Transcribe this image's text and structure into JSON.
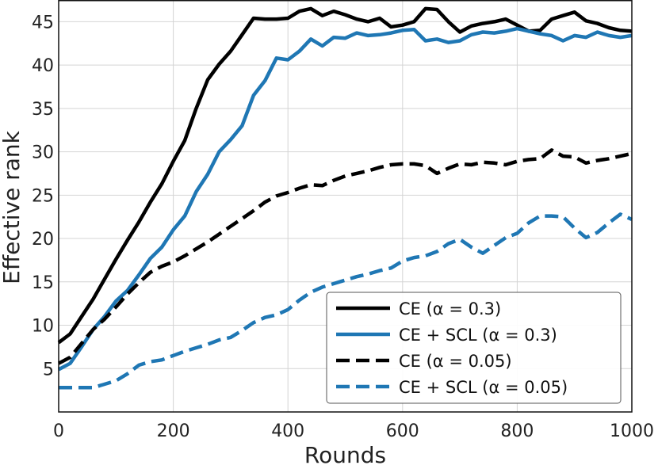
{
  "chart_data": {
    "type": "line",
    "xlabel": "Rounds",
    "ylabel": "Effective rank",
    "xlim": [
      0,
      1000
    ],
    "ylim": [
      0,
      47.5
    ],
    "xticks": [
      0,
      200,
      400,
      600,
      800,
      1000
    ],
    "yticks": [
      5,
      10,
      15,
      20,
      25,
      30,
      35,
      40,
      45
    ],
    "grid": true,
    "legend_position": "lower-right",
    "x": [
      0,
      20,
      40,
      60,
      80,
      100,
      120,
      140,
      160,
      180,
      200,
      220,
      240,
      260,
      280,
      300,
      320,
      340,
      360,
      380,
      400,
      420,
      440,
      460,
      480,
      500,
      520,
      540,
      560,
      580,
      600,
      620,
      640,
      660,
      680,
      700,
      720,
      740,
      760,
      780,
      800,
      820,
      840,
      860,
      880,
      900,
      920,
      940,
      960,
      980,
      1000
    ],
    "series": [
      {
        "name": "CE (α = 0.3)",
        "color": "#000000",
        "dash": "solid",
        "values": [
          8.0,
          9.0,
          11.0,
          13.0,
          15.3,
          17.6,
          19.8,
          21.9,
          24.2,
          26.3,
          28.9,
          31.3,
          35.0,
          38.3,
          40.1,
          41.6,
          43.5,
          45.4,
          45.3,
          45.3,
          45.4,
          46.2,
          46.5,
          45.7,
          46.2,
          45.8,
          45.3,
          45.0,
          45.4,
          44.4,
          44.6,
          45.0,
          46.5,
          46.4,
          45.0,
          43.8,
          44.5,
          44.8,
          45.0,
          45.3,
          44.6,
          43.9,
          44.0,
          45.3,
          45.7,
          46.1,
          45.1,
          44.8,
          44.3,
          44.0,
          43.9
        ]
      },
      {
        "name": "CE + SCL (α = 0.3)",
        "color": "#1f77b4",
        "dash": "solid",
        "values": [
          4.9,
          5.6,
          7.5,
          9.5,
          11.0,
          12.8,
          14.0,
          15.8,
          17.7,
          19.0,
          21.0,
          22.6,
          25.4,
          27.4,
          30.0,
          31.4,
          33.0,
          36.5,
          38.2,
          40.8,
          40.6,
          41.6,
          43.0,
          42.2,
          43.2,
          43.1,
          43.7,
          43.4,
          43.5,
          43.7,
          44.0,
          44.1,
          42.8,
          43.0,
          42.6,
          42.8,
          43.5,
          43.8,
          43.7,
          43.9,
          44.2,
          43.9,
          43.6,
          43.4,
          42.8,
          43.4,
          43.2,
          43.8,
          43.4,
          43.2,
          43.4
        ]
      },
      {
        "name": "CE (α = 0.05)",
        "color": "#000000",
        "dash": "dashed",
        "values": [
          5.6,
          6.3,
          7.9,
          9.5,
          10.7,
          12.1,
          13.6,
          14.9,
          16.1,
          16.8,
          17.3,
          18.0,
          18.8,
          19.6,
          20.5,
          21.4,
          22.3,
          23.2,
          24.2,
          24.9,
          25.3,
          25.8,
          26.2,
          26.1,
          26.7,
          27.2,
          27.5,
          27.8,
          28.2,
          28.5,
          28.6,
          28.6,
          28.4,
          27.5,
          28.1,
          28.6,
          28.5,
          28.8,
          28.7,
          28.5,
          28.9,
          29.1,
          29.2,
          30.2,
          29.5,
          29.4,
          28.7,
          29.0,
          29.2,
          29.5,
          29.8
        ]
      },
      {
        "name": "CE + SCL (α = 0.05)",
        "color": "#1f77b4",
        "dash": "dashed",
        "values": [
          2.8,
          2.8,
          2.8,
          2.8,
          3.2,
          3.6,
          4.4,
          5.4,
          5.8,
          6.0,
          6.5,
          7.0,
          7.4,
          7.8,
          8.3,
          8.6,
          9.4,
          10.3,
          10.9,
          11.2,
          11.8,
          12.9,
          13.8,
          14.4,
          14.8,
          15.2,
          15.6,
          15.9,
          16.3,
          16.6,
          17.4,
          17.8,
          18.0,
          18.5,
          19.4,
          19.9,
          19.0,
          18.3,
          19.2,
          20.1,
          20.6,
          21.8,
          22.6,
          22.6,
          22.5,
          21.2,
          20.1,
          20.7,
          21.8,
          22.8,
          22.2
        ]
      }
    ]
  }
}
